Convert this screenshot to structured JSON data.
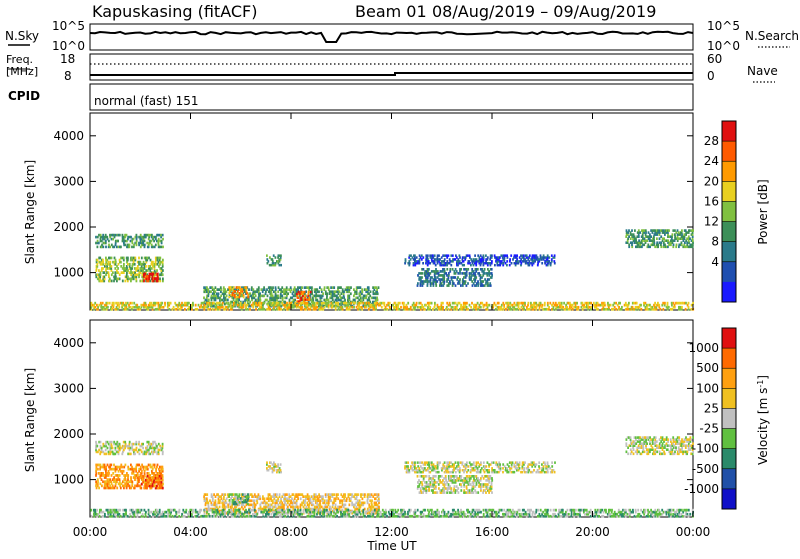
{
  "header": {
    "station": "Kapuskasing (fitACF)",
    "beam": "Beam 01",
    "date_range": "08/Aug/2019 – 09/Aug/2019"
  },
  "nsky": {
    "label": "N.Sky",
    "right_label": "N.Search",
    "tick_labels_left": [
      "10^5",
      "10^0"
    ],
    "tick_labels_right": [
      "10^5",
      "10^0"
    ]
  },
  "freq": {
    "label_line1": "Freq.",
    "label_line2": "[MHz]",
    "right_label": "Nave",
    "left_ticks": [
      "18",
      "8"
    ],
    "right_ticks": [
      "60",
      "0"
    ]
  },
  "cpid": {
    "label": "CPID",
    "mode_text": "normal (fast) 151"
  },
  "chart_data": [
    {
      "type": "heatmap",
      "panel": "power",
      "ylabel": "Slant Range [km]",
      "xlabel": "Time UT",
      "x_ticks": [
        "00:00",
        "04:00",
        "08:00",
        "12:00",
        "16:00",
        "20:00",
        "00:00"
      ],
      "y_ticks": [
        1000,
        2000,
        3000,
        4000
      ],
      "ylim": [
        180,
        4500
      ],
      "xlim_hours": [
        0,
        24
      ],
      "colorbar": {
        "label": "Power [dB]",
        "ticks": [
          "4",
          "8",
          "12",
          "16",
          "20",
          "24",
          "28"
        ],
        "colors": [
          "#1a1aff",
          "#1f4fb0",
          "#2a7a8a",
          "#3c8f58",
          "#80c040",
          "#e8d020",
          "#ff9a00",
          "#ff5a00",
          "#e01010"
        ]
      },
      "echo_regions": [
        {
          "t0": 0.2,
          "t1": 2.9,
          "r0": 1550,
          "r1": 1850,
          "level": 3
        },
        {
          "t0": 0.2,
          "t1": 2.9,
          "r0": 800,
          "r1": 1350,
          "level": 4
        },
        {
          "t0": 2.1,
          "t1": 2.7,
          "r0": 800,
          "r1": 1000,
          "level": 8
        },
        {
          "t0": 4.5,
          "t1": 11.5,
          "r0": 250,
          "r1": 700,
          "level": 3
        },
        {
          "t0": 5.5,
          "t1": 6.3,
          "r0": 450,
          "r1": 700,
          "level": 6
        },
        {
          "t0": 8.2,
          "t1": 8.8,
          "r0": 350,
          "r1": 600,
          "level": 7
        },
        {
          "t0": 7.0,
          "t1": 7.6,
          "r0": 1150,
          "r1": 1400,
          "level": 3
        },
        {
          "t0": 0.0,
          "t1": 24.0,
          "r0": 180,
          "r1": 360,
          "level": 5
        },
        {
          "t0": 12.5,
          "t1": 18.5,
          "r0": 1150,
          "r1": 1400,
          "level": 1
        },
        {
          "t0": 13.0,
          "t1": 16.0,
          "r0": 700,
          "r1": 1100,
          "level": 2
        },
        {
          "t0": 21.3,
          "t1": 24.0,
          "r0": 1550,
          "r1": 1950,
          "level": 3
        }
      ]
    },
    {
      "type": "heatmap",
      "panel": "velocity",
      "ylabel": "Slant Range [km]",
      "xlabel": "Time UT",
      "x_ticks": [
        "00:00",
        "04:00",
        "08:00",
        "12:00",
        "16:00",
        "20:00",
        "00:00"
      ],
      "y_ticks": [
        1000,
        2000,
        3000,
        4000
      ],
      "ylim": [
        180,
        4500
      ],
      "xlim_hours": [
        0,
        24
      ],
      "colorbar": {
        "label": "Velocity [m s^-1]",
        "ticks": [
          "1000",
          "500",
          "100",
          "25",
          "-25",
          "-100",
          "-500",
          "-1000"
        ],
        "colors": [
          "#1010c8",
          "#2050a8",
          "#2a8a6a",
          "#60c040",
          "#c0c0c0",
          "#f0c020",
          "#ffa010",
          "#ff6a00",
          "#e01010"
        ]
      },
      "echo_regions": [
        {
          "t0": 0.2,
          "t1": 2.9,
          "r0": 1550,
          "r1": 1850,
          "level": 4
        },
        {
          "t0": 0.2,
          "t1": 2.9,
          "r0": 800,
          "r1": 1350,
          "level": 6
        },
        {
          "t0": 2.0,
          "t1": 2.9,
          "r0": 800,
          "r1": 1100,
          "level": 7
        },
        {
          "t0": 4.5,
          "t1": 11.5,
          "r0": 250,
          "r1": 700,
          "level": 5
        },
        {
          "t0": 5.5,
          "t1": 6.3,
          "r0": 450,
          "r1": 700,
          "level": 3
        },
        {
          "t0": 7.0,
          "t1": 7.6,
          "r0": 1150,
          "r1": 1400,
          "level": 4
        },
        {
          "t0": 0.0,
          "t1": 24.0,
          "r0": 180,
          "r1": 360,
          "level": 3
        },
        {
          "t0": 12.5,
          "t1": 18.5,
          "r0": 1150,
          "r1": 1400,
          "level": 4
        },
        {
          "t0": 13.0,
          "t1": 16.0,
          "r0": 700,
          "r1": 1100,
          "level": 4
        },
        {
          "t0": 21.3,
          "t1": 24.0,
          "r0": 1550,
          "r1": 1950,
          "level": 4
        }
      ]
    }
  ]
}
